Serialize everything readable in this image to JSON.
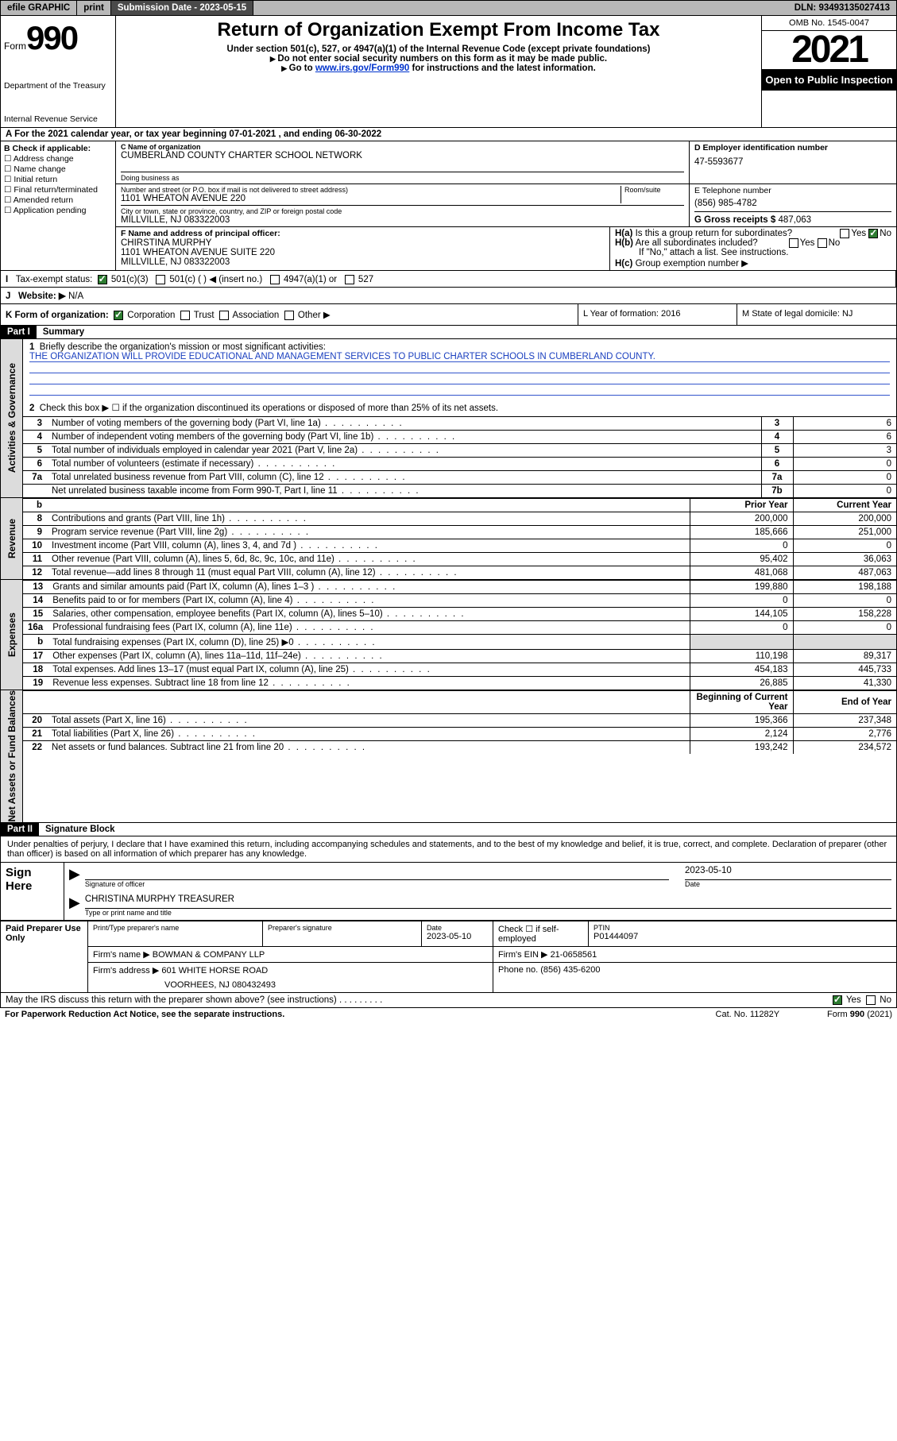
{
  "colors": {
    "header_gray": "#b8b8b8",
    "dark_gray": "#4a4a4a",
    "black": "#000000",
    "white": "#ffffff",
    "shade": "#dcdcdc",
    "link_blue": "#0033cc",
    "mission_blue": "#1a3fbf",
    "check_green": "#2e7d32"
  },
  "topbar": {
    "efile": "efile GRAPHIC",
    "print": "print",
    "subdate_lbl": "Submission Date - 2023-05-15",
    "dln": "DLN: 93493135027413"
  },
  "header": {
    "form_word": "Form",
    "form_num": "990",
    "dept": "Department of the Treasury",
    "irs": "Internal Revenue Service",
    "title": "Return of Organization Exempt From Income Tax",
    "sub1": "Under section 501(c), 527, or 4947(a)(1) of the Internal Revenue Code (except private foundations)",
    "sub2": "Do not enter social security numbers on this form as it may be made public.",
    "sub3_pre": "Go to ",
    "sub3_link": "www.irs.gov/Form990",
    "sub3_post": " for instructions and the latest information.",
    "omb": "OMB No. 1545-0047",
    "year": "2021",
    "open": "Open to Public Inspection"
  },
  "rowA": "For the 2021 calendar year, or tax year beginning 07-01-2021   , and ending 06-30-2022",
  "B": {
    "lbl": "B Check if applicable:",
    "items": [
      "Address change",
      "Name change",
      "Initial return",
      "Final return/terminated",
      "Amended return",
      "Application pending"
    ]
  },
  "C": {
    "name_lbl": "C Name of organization",
    "name": "CUMBERLAND COUNTY CHARTER SCHOOL NETWORK",
    "dba_lbl": "Doing business as",
    "addr_lbl": "Number and street (or P.O. box if mail is not delivered to street address)",
    "room_lbl": "Room/suite",
    "addr": "1101 WHEATON AVENUE 220",
    "city_lbl": "City or town, state or province, country, and ZIP or foreign postal code",
    "city": "MILLVILLE, NJ  083322003"
  },
  "D": {
    "lbl": "D Employer identification number",
    "val": "47-5593677"
  },
  "E": {
    "lbl": "E Telephone number",
    "val": "(856) 985-4782"
  },
  "G": {
    "lbl": "G Gross receipts $",
    "val": "487,063"
  },
  "F": {
    "lbl": "F Name and address of principal officer:",
    "name": "CHIRSTINA MURPHY",
    "addr1": "1101 WHEATON AVENUE SUITE 220",
    "addr2": "MILLVILLE, NJ  083322003"
  },
  "H": {
    "a": "Is this a group return for subordinates?",
    "b": "Are all subordinates included?",
    "note": "If \"No,\" attach a list. See instructions.",
    "c": "Group exemption number ▶",
    "yes": "Yes",
    "no": "No"
  },
  "I": {
    "lbl": "Tax-exempt status:",
    "opts": [
      "501(c)(3)",
      "501(c) (  ) ◀ (insert no.)",
      "4947(a)(1) or",
      "527"
    ]
  },
  "J": {
    "lbl": "Website: ▶",
    "val": "N/A"
  },
  "K": {
    "lbl": "K Form of organization:",
    "opts": [
      "Corporation",
      "Trust",
      "Association",
      "Other ▶"
    ]
  },
  "L": {
    "lbl": "L Year of formation: 2016"
  },
  "M": {
    "lbl": "M State of legal domicile: NJ"
  },
  "partI": {
    "title": "Part I",
    "name": "Summary",
    "sideA": "Activities & Governance",
    "sideR": "Revenue",
    "sideE": "Expenses",
    "sideN": "Net Assets or Fund Balances",
    "q1": "Briefly describe the organization's mission or most significant activities:",
    "mission": "THE ORGANIZATION WILL PROVIDE EDUCATIONAL AND MANAGEMENT SERVICES TO PUBLIC CHARTER SCHOOLS IN CUMBERLAND COUNTY.",
    "q2": "Check this box ▶ ☐  if the organization discontinued its operations or disposed of more than 25% of its net assets.",
    "rows_gov": [
      {
        "n": "3",
        "t": "Number of voting members of the governing body (Part VI, line 1a)",
        "b": "3",
        "v": "6"
      },
      {
        "n": "4",
        "t": "Number of independent voting members of the governing body (Part VI, line 1b)",
        "b": "4",
        "v": "6"
      },
      {
        "n": "5",
        "t": "Total number of individuals employed in calendar year 2021 (Part V, line 2a)",
        "b": "5",
        "v": "3"
      },
      {
        "n": "6",
        "t": "Total number of volunteers (estimate if necessary)",
        "b": "6",
        "v": "0"
      },
      {
        "n": "7a",
        "t": "Total unrelated business revenue from Part VIII, column (C), line 12",
        "b": "7a",
        "v": "0"
      },
      {
        "n": "",
        "t": "Net unrelated business taxable income from Form 990-T, Part I, line 11",
        "b": "7b",
        "v": "0"
      }
    ],
    "hdr_prior": "Prior Year",
    "hdr_curr": "Current Year",
    "rows_rev": [
      {
        "n": "8",
        "t": "Contributions and grants (Part VIII, line 1h)",
        "p": "200,000",
        "c": "200,000"
      },
      {
        "n": "9",
        "t": "Program service revenue (Part VIII, line 2g)",
        "p": "185,666",
        "c": "251,000"
      },
      {
        "n": "10",
        "t": "Investment income (Part VIII, column (A), lines 3, 4, and 7d )",
        "p": "0",
        "c": "0"
      },
      {
        "n": "11",
        "t": "Other revenue (Part VIII, column (A), lines 5, 6d, 8c, 9c, 10c, and 11e)",
        "p": "95,402",
        "c": "36,063"
      },
      {
        "n": "12",
        "t": "Total revenue—add lines 8 through 11 (must equal Part VIII, column (A), line 12)",
        "p": "481,068",
        "c": "487,063"
      }
    ],
    "rows_exp": [
      {
        "n": "13",
        "t": "Grants and similar amounts paid (Part IX, column (A), lines 1–3 )",
        "p": "199,880",
        "c": "198,188"
      },
      {
        "n": "14",
        "t": "Benefits paid to or for members (Part IX, column (A), line 4)",
        "p": "0",
        "c": "0"
      },
      {
        "n": "15",
        "t": "Salaries, other compensation, employee benefits (Part IX, column (A), lines 5–10)",
        "p": "144,105",
        "c": "158,228"
      },
      {
        "n": "16a",
        "t": "Professional fundraising fees (Part IX, column (A), line 11e)",
        "p": "0",
        "c": "0"
      },
      {
        "n": "b",
        "t": "Total fundraising expenses (Part IX, column (D), line 25) ▶0",
        "p": "",
        "c": "",
        "shade": true
      },
      {
        "n": "17",
        "t": "Other expenses (Part IX, column (A), lines 11a–11d, 11f–24e)",
        "p": "110,198",
        "c": "89,317"
      },
      {
        "n": "18",
        "t": "Total expenses. Add lines 13–17 (must equal Part IX, column (A), line 25)",
        "p": "454,183",
        "c": "445,733"
      },
      {
        "n": "19",
        "t": "Revenue less expenses. Subtract line 18 from line 12",
        "p": "26,885",
        "c": "41,330"
      }
    ],
    "hdr_beg": "Beginning of Current Year",
    "hdr_end": "End of Year",
    "rows_net": [
      {
        "n": "20",
        "t": "Total assets (Part X, line 16)",
        "p": "195,366",
        "c": "237,348"
      },
      {
        "n": "21",
        "t": "Total liabilities (Part X, line 26)",
        "p": "2,124",
        "c": "2,776"
      },
      {
        "n": "22",
        "t": "Net assets or fund balances. Subtract line 21 from line 20",
        "p": "193,242",
        "c": "234,572"
      }
    ]
  },
  "partII": {
    "title": "Part II",
    "name": "Signature Block",
    "intro": "Under penalties of perjury, I declare that I have examined this return, including accompanying schedules and statements, and to the best of my knowledge and belief, it is true, correct, and complete. Declaration of preparer (other than officer) is based on all information of which preparer has any knowledge.",
    "sign_here": "Sign Here",
    "sig_officer": "Signature of officer",
    "sig_date": "2023-05-10",
    "date_lbl": "Date",
    "officer": "CHRISTINA MURPHY TREASURER",
    "type_name": "Type or print name and title",
    "paid": "Paid Preparer Use Only",
    "prep_name_lbl": "Print/Type preparer's name",
    "prep_sig_lbl": "Preparer's signature",
    "prep_date_lbl": "Date",
    "prep_date": "2023-05-10",
    "check_lbl": "Check ☐ if self-employed",
    "ptin_lbl": "PTIN",
    "ptin": "P01444097",
    "firm_name_lbl": "Firm's name    ▶",
    "firm_name": "BOWMAN & COMPANY LLP",
    "firm_ein_lbl": "Firm's EIN ▶",
    "firm_ein": "21-0658561",
    "firm_addr_lbl": "Firm's address ▶",
    "firm_addr1": "601 WHITE HORSE ROAD",
    "firm_addr2": "VOORHEES, NJ  080432493",
    "phone_lbl": "Phone no.",
    "phone": "(856) 435-6200",
    "discuss": "May the IRS discuss this return with the preparer shown above? (see instructions)",
    "yes": "Yes",
    "no": "No"
  },
  "footer": {
    "left": "For Paperwork Reduction Act Notice, see the separate instructions.",
    "mid": "Cat. No. 11282Y",
    "right": "Form 990 (2021)"
  }
}
